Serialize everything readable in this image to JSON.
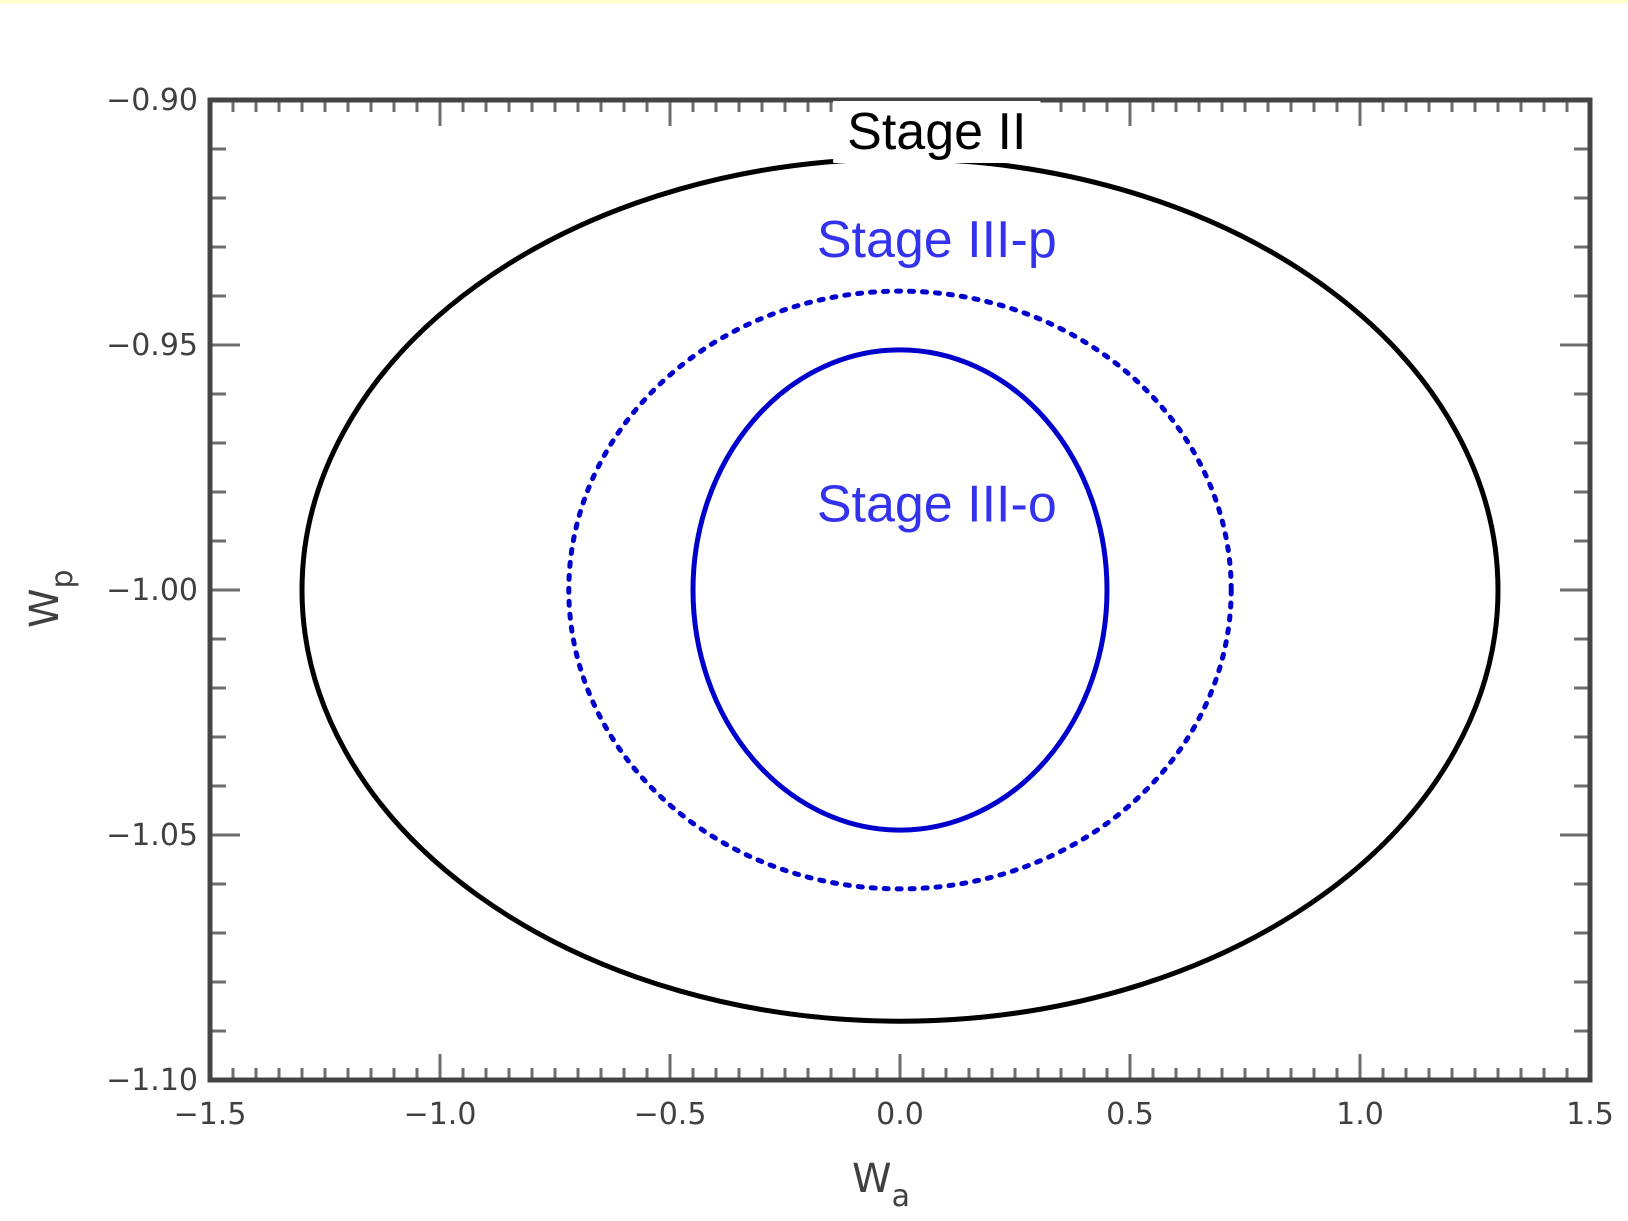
{
  "chart_data": {
    "type": "line",
    "xlabel_main": "W",
    "xlabel_sub": "a",
    "ylabel_main": "W",
    "ylabel_sub": "p",
    "xlim": [
      -1.5,
      1.5
    ],
    "ylim": [
      -1.1,
      -0.9
    ],
    "xticks": [
      -1.5,
      -1.0,
      -0.5,
      0.0,
      0.5,
      1.0,
      1.5
    ],
    "xtick_labels": [
      "−1.5",
      "−1.0",
      "−0.5",
      "0.0",
      "0.5",
      "1.0",
      "1.5"
    ],
    "yticks": [
      -0.9,
      -0.95,
      -1.0,
      -1.05,
      -1.1
    ],
    "ytick_labels": [
      "−0.90",
      "−0.95",
      "−1.00",
      "−1.05",
      "−1.10"
    ],
    "grid": false,
    "series": [
      {
        "name": "Stage II",
        "shape": "ellipse",
        "center": [
          0.0,
          -1.0
        ],
        "semi_axes": [
          1.3,
          0.088
        ],
        "line": "solid",
        "color": "#000000",
        "label_position": [
          0.08,
          -0.91
        ]
      },
      {
        "name": "Stage III-p",
        "shape": "ellipse",
        "center": [
          0.0,
          -1.0
        ],
        "semi_axes": [
          0.72,
          0.061
        ],
        "line": "dotted",
        "color": "#0000cc",
        "label_color": "#3333ee",
        "label_position": [
          0.08,
          -0.932
        ]
      },
      {
        "name": "Stage III-o",
        "shape": "ellipse",
        "center": [
          0.0,
          -1.0
        ],
        "semi_axes": [
          0.45,
          0.049
        ],
        "line": "solid",
        "color": "#0000cc",
        "label_color": "#3333ee",
        "label_position": [
          0.08,
          -0.986
        ]
      }
    ]
  }
}
